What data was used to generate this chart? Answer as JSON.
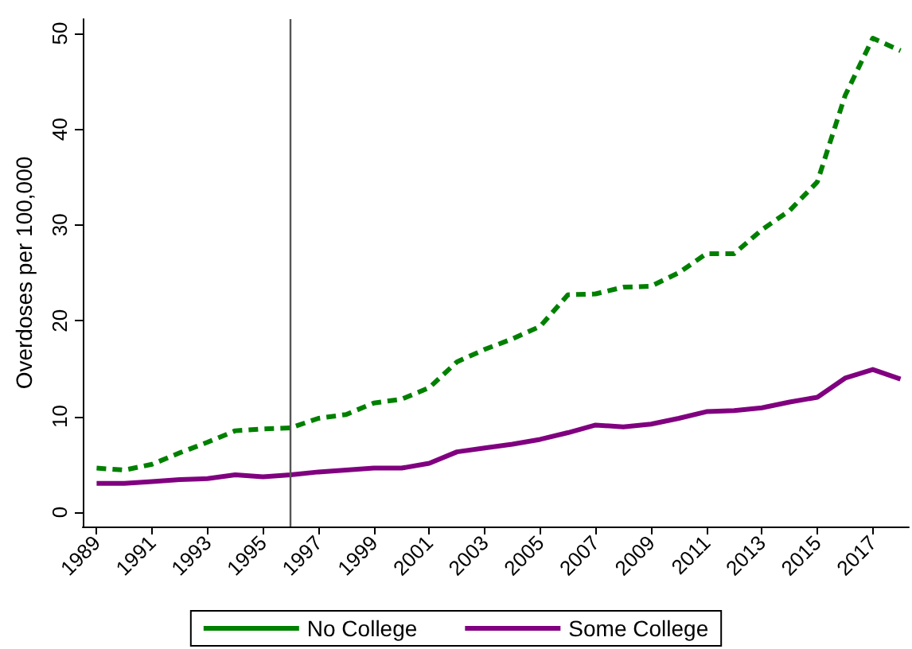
{
  "chart_data": {
    "type": "line",
    "ylabel": "Overdoses per 100,000",
    "x": [
      1989,
      1990,
      1991,
      1992,
      1993,
      1994,
      1995,
      1996,
      1997,
      1998,
      1999,
      2000,
      2001,
      2002,
      2003,
      2004,
      2005,
      2006,
      2007,
      2008,
      2009,
      2010,
      2011,
      2012,
      2013,
      2014,
      2015,
      2016,
      2017,
      2018
    ],
    "series": [
      {
        "name": "No College",
        "color": "#008000",
        "line_style": "dashed",
        "values": [
          4.6,
          4.4,
          5.0,
          6.2,
          7.3,
          8.5,
          8.7,
          8.8,
          9.8,
          10.2,
          11.4,
          11.8,
          13.0,
          15.7,
          17.0,
          18.1,
          19.4,
          22.7,
          22.8,
          23.5,
          23.6,
          25.0,
          27.0,
          27.0,
          29.5,
          31.5,
          34.5,
          43.5,
          49.5,
          48.2
        ]
      },
      {
        "name": "Some College",
        "color": "#800080",
        "line_style": "solid",
        "values": [
          3.0,
          3.0,
          3.2,
          3.4,
          3.5,
          3.9,
          3.7,
          3.9,
          4.2,
          4.4,
          4.6,
          4.6,
          5.1,
          6.3,
          6.7,
          7.1,
          7.6,
          8.3,
          9.1,
          8.9,
          9.2,
          9.8,
          10.5,
          10.6,
          10.9,
          11.5,
          12.0,
          14.0,
          14.9,
          13.9
        ]
      }
    ],
    "xlim": [
      1988.5,
      2018.3
    ],
    "xticks": [
      1989,
      1991,
      1993,
      1995,
      1997,
      1999,
      2001,
      2003,
      2005,
      2007,
      2009,
      2011,
      2013,
      2015,
      2017
    ],
    "ylim": [
      -1.5,
      51.5
    ],
    "yticks": [
      0,
      10,
      20,
      30,
      40,
      50
    ],
    "ref_lines": [
      {
        "axis": "x",
        "value": 1996,
        "color": "#555555",
        "line_style": "solid"
      }
    ],
    "grid": false,
    "legend": "bottom",
    "marker": "none"
  }
}
